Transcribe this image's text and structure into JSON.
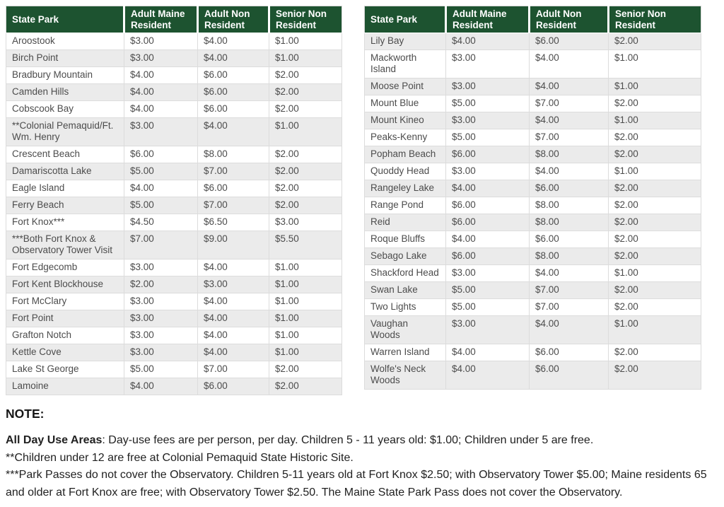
{
  "tables": {
    "left": {
      "columns": [
        "State Park",
        "Adult Maine Resident",
        "Adult Non Resident",
        "Senior Non Resident"
      ],
      "rows": [
        [
          "Aroostook",
          "$3.00",
          "$4.00",
          "$1.00"
        ],
        [
          "Birch Point",
          "$3.00",
          "$4.00",
          "$1.00"
        ],
        [
          "Bradbury Mountain",
          "$4.00",
          "$6.00",
          "$2.00"
        ],
        [
          "Camden Hills",
          "$4.00",
          "$6.00",
          "$2.00"
        ],
        [
          "Cobscook Bay",
          "$4.00",
          "$6.00",
          "$2.00"
        ],
        [
          "**Colonial Pemaquid/Ft. Wm. Henry",
          "$3.00",
          "$4.00",
          "$1.00"
        ],
        [
          "Crescent Beach",
          "$6.00",
          "$8.00",
          "$2.00"
        ],
        [
          "Damariscotta Lake",
          "$5.00",
          "$7.00",
          "$2.00"
        ],
        [
          "Eagle Island",
          "$4.00",
          "$6.00",
          "$2.00"
        ],
        [
          "Ferry Beach",
          "$5.00",
          "$7.00",
          "$2.00"
        ],
        [
          "Fort Knox***",
          "$4.50",
          "$6.50",
          "$3.00"
        ],
        [
          "***Both Fort Knox & Observatory Tower Visit",
          "$7.00",
          "$9.00",
          "$5.50"
        ],
        [
          "Fort Edgecomb",
          "$3.00",
          "$4.00",
          "$1.00"
        ],
        [
          "Fort Kent Blockhouse",
          "$2.00",
          "$3.00",
          "$1.00"
        ],
        [
          "Fort McClary",
          "$3.00",
          "$4.00",
          "$1.00"
        ],
        [
          "Fort Point",
          "$3.00",
          "$4.00",
          "$1.00"
        ],
        [
          "Grafton Notch",
          "$3.00",
          "$4.00",
          "$1.00"
        ],
        [
          "Kettle Cove",
          "$3.00",
          "$4.00",
          "$1.00"
        ],
        [
          "Lake St George",
          "$5.00",
          "$7.00",
          "$2.00"
        ],
        [
          "Lamoine",
          "$4.00",
          "$6.00",
          "$2.00"
        ]
      ]
    },
    "right": {
      "columns": [
        "State Park",
        "Adult Maine Resident",
        "Adult Non Resident",
        "Senior Non Resident"
      ],
      "rows": [
        [
          "Lily Bay",
          "$4.00",
          "$6.00",
          "$2.00"
        ],
        [
          "Mackworth Island",
          "$3.00",
          "$4.00",
          "$1.00"
        ],
        [
          "Moose Point",
          "$3.00",
          "$4.00",
          "$1.00"
        ],
        [
          "Mount Blue",
          "$5.00",
          "$7.00",
          "$2.00"
        ],
        [
          "Mount Kineo",
          "$3.00",
          "$4.00",
          "$1.00"
        ],
        [
          "Peaks-Kenny",
          "$5.00",
          "$7.00",
          "$2.00"
        ],
        [
          "Popham Beach",
          "$6.00",
          "$8.00",
          "$2.00"
        ],
        [
          "Quoddy Head",
          "$3.00",
          "$4.00",
          "$1.00"
        ],
        [
          "Rangeley Lake",
          "$4.00",
          "$6.00",
          "$2.00"
        ],
        [
          "Range Pond",
          "$6.00",
          "$8.00",
          "$2.00"
        ],
        [
          "Reid",
          "$6.00",
          "$8.00",
          "$2.00"
        ],
        [
          "Roque Bluffs",
          "$4.00",
          "$6.00",
          "$2.00"
        ],
        [
          "Sebago Lake",
          "$6.00",
          "$8.00",
          "$2.00"
        ],
        [
          "Shackford Head",
          "$3.00",
          "$4.00",
          "$1.00"
        ],
        [
          "Swan Lake",
          "$5.00",
          "$7.00",
          "$2.00"
        ],
        [
          "Two Lights",
          "$5.00",
          "$7.00",
          "$2.00"
        ],
        [
          "Vaughan Woods",
          "$3.00",
          "$4.00",
          "$1.00"
        ],
        [
          "Warren Island",
          "$4.00",
          "$6.00",
          "$2.00"
        ],
        [
          "Wolfe's Neck Woods",
          "$4.00",
          "$6.00",
          "$2.00"
        ]
      ]
    }
  },
  "notes": {
    "heading": "NOTE:",
    "all_day_use_label": "All Day Use Areas",
    "all_day_use_text": ": Day-use fees are per person, per day. Children 5 - 11 years old: $1.00; Children under 5 are free.",
    "note2": "**Children under 12 are free at Colonial Pemaquid State Historic Site.",
    "note3": "***Park Passes do not cover the Observatory. Children 5-11 years old at Fort Knox $2.50; with Observatory Tower $5.00; Maine residents 65 and older at Fort Knox are free; with Observatory Tower $2.50. The Maine State Park Pass does not cover the Observatory."
  },
  "colors": {
    "header_bg": "#1d5330",
    "header_text": "#ffffff",
    "row_alt_bg": "#ebebeb",
    "cell_border": "#dcdcdc"
  }
}
